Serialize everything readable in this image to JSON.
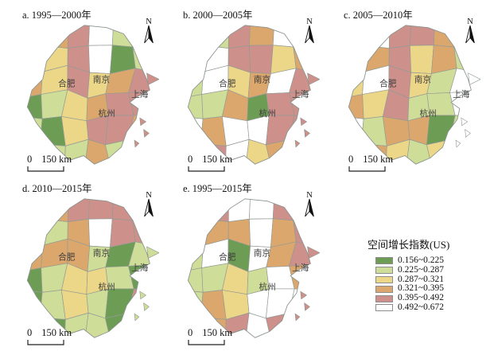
{
  "figure": {
    "north_label": "N",
    "scalebar": {
      "zero": "0",
      "distance": "150 km"
    },
    "cities": {
      "hefei": "合肥",
      "nanjing": "南京",
      "shanghai": "上海",
      "hangzhou": "杭州"
    },
    "legend": {
      "title": "空间增长指数(US)",
      "classes": [
        {
          "label": "0.156~0.225",
          "color": "#6D9C54"
        },
        {
          "label": "0.225~0.287",
          "color": "#CEDD98"
        },
        {
          "label": "0.287~0.321",
          "color": "#ECD688"
        },
        {
          "label": "0.321~0.395",
          "color": "#DCA76C"
        },
        {
          "label": "0.395~0.492",
          "color": "#CD908B"
        },
        {
          "label": "0.492~0.672",
          "color": "#FFFFFF"
        }
      ]
    },
    "panels": [
      {
        "id": "a",
        "title": "a. 1995—2000年",
        "cells": [
          6,
          4,
          5,
          6,
          2,
          2,
          4,
          3,
          5,
          6,
          1,
          2,
          4,
          3,
          5,
          3,
          4,
          5,
          1,
          2,
          3,
          4,
          5,
          5,
          2,
          1,
          3,
          5,
          5,
          4,
          2,
          2,
          2,
          4,
          2,
          6
        ]
      },
      {
        "id": "b",
        "title": "b. 2000—2005年",
        "cells": [
          6,
          2,
          5,
          4,
          6,
          4,
          5,
          6,
          5,
          5,
          3,
          4,
          2,
          6,
          3,
          4,
          6,
          5,
          2,
          2,
          4,
          1,
          5,
          5,
          6,
          4,
          6,
          6,
          5,
          5,
          6,
          5,
          6,
          3,
          4,
          6
        ]
      },
      {
        "id": "c",
        "title": "c. 2005—2010年",
        "cells": [
          6,
          6,
          5,
          5,
          4,
          6,
          6,
          4,
          5,
          3,
          4,
          2,
          3,
          6,
          5,
          3,
          2,
          6,
          4,
          3,
          5,
          2,
          2,
          6,
          6,
          2,
          4,
          4,
          1,
          2,
          4,
          4,
          3,
          2,
          3,
          6
        ]
      },
      {
        "id": "d",
        "title": "d. 2010—2015年",
        "cells": [
          4,
          4,
          5,
          5,
          5,
          5,
          3,
          2,
          4,
          6,
          5,
          5,
          4,
          4,
          4,
          2,
          1,
          2,
          1,
          2,
          3,
          3,
          2,
          1,
          1,
          2,
          3,
          2,
          1,
          5,
          5,
          1,
          2,
          2,
          1,
          6
        ]
      },
      {
        "id": "e",
        "title": "e. 1995—2015年",
        "cells": [
          6,
          5,
          6,
          6,
          5,
          5,
          5,
          4,
          4,
          6,
          4,
          5,
          2,
          6,
          1,
          6,
          4,
          5,
          2,
          2,
          3,
          2,
          6,
          4,
          2,
          4,
          3,
          6,
          6,
          6,
          6,
          4,
          5,
          6,
          5,
          6
        ]
      }
    ]
  }
}
